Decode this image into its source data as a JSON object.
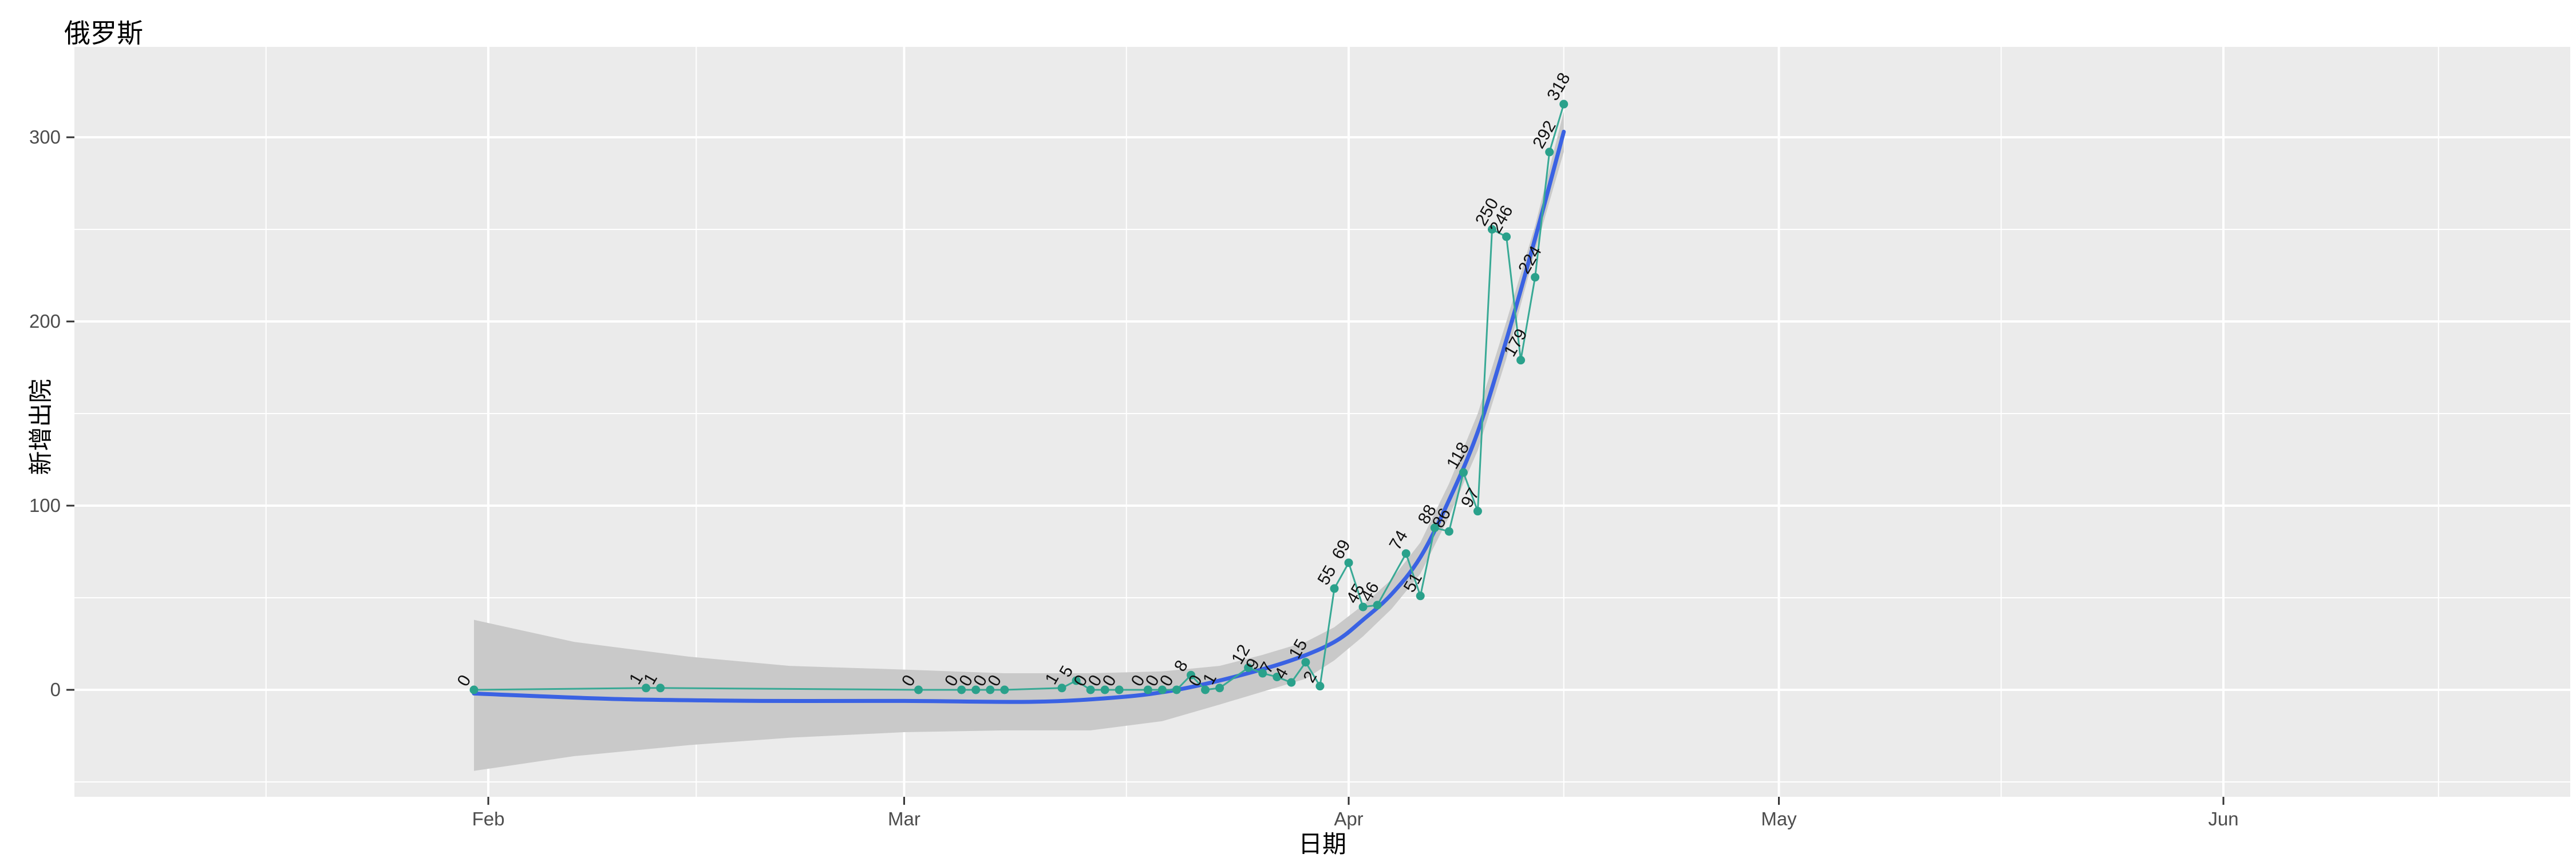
{
  "chart_data": {
    "type": "line",
    "title": "俄罗斯",
    "xlabel": "日期",
    "ylabel": "新增出院",
    "colors": {
      "panel_background": "#EBEBEB",
      "gridline": "#FFFFFF",
      "tick_mark": "#333333",
      "tick_label": "#4D4D4D",
      "smooth_line": "#3A62E3",
      "ribbon": "#C9C9C9",
      "data_line": "#38A995",
      "data_point": "#2AA18B",
      "data_label": "#111111"
    },
    "x_ticks": [
      {
        "label": "Feb",
        "date": "2020-02-01"
      },
      {
        "label": "Mar",
        "date": "2020-03-01"
      },
      {
        "label": "Apr",
        "date": "2020-04-01"
      },
      {
        "label": "May",
        "date": "2020-05-01"
      },
      {
        "label": "Jun",
        "date": "2020-06-01"
      }
    ],
    "y_ticks": [
      {
        "label": "0",
        "value": 0
      },
      {
        "label": "100",
        "value": 100
      },
      {
        "label": "200",
        "value": 200
      },
      {
        "label": "300",
        "value": 300
      }
    ],
    "y_minor_gridlines": [
      -50,
      50,
      150,
      250
    ],
    "x_month_boundaries": [
      "2020-01-01",
      "2020-02-01",
      "2020-03-01",
      "2020-04-01",
      "2020-05-01",
      "2020-06-01",
      "2020-07-01"
    ],
    "legend": "none",
    "grid": "on",
    "series": [
      {
        "name": "daily-new-discharged",
        "type": "scatter+line",
        "points": [
          {
            "date": "2020-01-31",
            "value": 0
          },
          {
            "date": "2020-02-12",
            "value": 1
          },
          {
            "date": "2020-02-13",
            "value": 1
          },
          {
            "date": "2020-03-02",
            "value": 0
          },
          {
            "date": "2020-03-05",
            "value": 0
          },
          {
            "date": "2020-03-06",
            "value": 0
          },
          {
            "date": "2020-03-07",
            "value": 0
          },
          {
            "date": "2020-03-08",
            "value": 0
          },
          {
            "date": "2020-03-12",
            "value": 1
          },
          {
            "date": "2020-03-13",
            "value": 5
          },
          {
            "date": "2020-03-14",
            "value": 0
          },
          {
            "date": "2020-03-15",
            "value": 0
          },
          {
            "date": "2020-03-16",
            "value": 0
          },
          {
            "date": "2020-03-18",
            "value": 0
          },
          {
            "date": "2020-03-19",
            "value": 0
          },
          {
            "date": "2020-03-20",
            "value": 0
          },
          {
            "date": "2020-03-21",
            "value": 8
          },
          {
            "date": "2020-03-22",
            "value": 0
          },
          {
            "date": "2020-03-23",
            "value": 1
          },
          {
            "date": "2020-03-25",
            "value": 12
          },
          {
            "date": "2020-03-26",
            "value": 9
          },
          {
            "date": "2020-03-27",
            "value": 7
          },
          {
            "date": "2020-03-28",
            "value": 4
          },
          {
            "date": "2020-03-29",
            "value": 15
          },
          {
            "date": "2020-03-30",
            "value": 2
          },
          {
            "date": "2020-03-31",
            "value": 55
          },
          {
            "date": "2020-04-01",
            "value": 69
          },
          {
            "date": "2020-04-02",
            "value": 45
          },
          {
            "date": "2020-04-03",
            "value": 46
          },
          {
            "date": "2020-04-05",
            "value": 74
          },
          {
            "date": "2020-04-06",
            "value": 51
          },
          {
            "date": "2020-04-07",
            "value": 88
          },
          {
            "date": "2020-04-08",
            "value": 86
          },
          {
            "date": "2020-04-09",
            "value": 118
          },
          {
            "date": "2020-04-10",
            "value": 97
          },
          {
            "date": "2020-04-11",
            "value": 250
          },
          {
            "date": "2020-04-12",
            "value": 246
          },
          {
            "date": "2020-04-13",
            "value": 179
          },
          {
            "date": "2020-04-14",
            "value": 224
          },
          {
            "date": "2020-04-15",
            "value": 292
          },
          {
            "date": "2020-04-16",
            "value": 318
          }
        ]
      },
      {
        "name": "loess-smooth",
        "type": "smooth-line",
        "anchors": [
          {
            "date": "2020-01-31",
            "value": -2
          },
          {
            "date": "2020-02-10",
            "value": -5
          },
          {
            "date": "2020-02-20",
            "value": -6
          },
          {
            "date": "2020-03-01",
            "value": -6
          },
          {
            "date": "2020-03-10",
            "value": -6.5
          },
          {
            "date": "2020-03-16",
            "value": -4
          },
          {
            "date": "2020-03-20",
            "value": 0
          },
          {
            "date": "2020-03-24",
            "value": 7
          },
          {
            "date": "2020-03-28",
            "value": 16
          },
          {
            "date": "2020-03-31",
            "value": 26
          },
          {
            "date": "2020-04-02",
            "value": 38
          },
          {
            "date": "2020-04-04",
            "value": 52
          },
          {
            "date": "2020-04-06",
            "value": 72
          },
          {
            "date": "2020-04-08",
            "value": 103
          },
          {
            "date": "2020-04-10",
            "value": 140
          },
          {
            "date": "2020-04-12",
            "value": 190
          },
          {
            "date": "2020-04-14",
            "value": 245
          },
          {
            "date": "2020-04-16",
            "value": 303
          }
        ]
      },
      {
        "name": "confidence-ribbon",
        "type": "ribbon",
        "upper": [
          {
            "date": "2020-01-31",
            "value": 38
          },
          {
            "date": "2020-02-07",
            "value": 26
          },
          {
            "date": "2020-02-15",
            "value": 18
          },
          {
            "date": "2020-02-22",
            "value": 13
          },
          {
            "date": "2020-03-01",
            "value": 11
          },
          {
            "date": "2020-03-08",
            "value": 9
          },
          {
            "date": "2020-03-14",
            "value": 9
          },
          {
            "date": "2020-03-19",
            "value": 10
          },
          {
            "date": "2020-03-23",
            "value": 13
          },
          {
            "date": "2020-03-26",
            "value": 19
          },
          {
            "date": "2020-03-29",
            "value": 26
          },
          {
            "date": "2020-03-31",
            "value": 34
          },
          {
            "date": "2020-04-02",
            "value": 46
          },
          {
            "date": "2020-04-04",
            "value": 60
          },
          {
            "date": "2020-04-06",
            "value": 80
          },
          {
            "date": "2020-04-08",
            "value": 112
          },
          {
            "date": "2020-04-10",
            "value": 150
          },
          {
            "date": "2020-04-12",
            "value": 200
          },
          {
            "date": "2020-04-14",
            "value": 252
          },
          {
            "date": "2020-04-15",
            "value": 283
          },
          {
            "date": "2020-04-16",
            "value": 314
          }
        ],
        "lower": [
          {
            "date": "2020-01-31",
            "value": -44
          },
          {
            "date": "2020-02-07",
            "value": -36
          },
          {
            "date": "2020-02-15",
            "value": -30
          },
          {
            "date": "2020-02-22",
            "value": -26
          },
          {
            "date": "2020-03-01",
            "value": -23
          },
          {
            "date": "2020-03-08",
            "value": -22
          },
          {
            "date": "2020-03-14",
            "value": -22
          },
          {
            "date": "2020-03-19",
            "value": -17
          },
          {
            "date": "2020-03-23",
            "value": -8
          },
          {
            "date": "2020-03-26",
            "value": -1
          },
          {
            "date": "2020-03-29",
            "value": 6
          },
          {
            "date": "2020-03-31",
            "value": 16
          },
          {
            "date": "2020-04-02",
            "value": 29
          },
          {
            "date": "2020-04-04",
            "value": 44
          },
          {
            "date": "2020-04-06",
            "value": 63
          },
          {
            "date": "2020-04-08",
            "value": 94
          },
          {
            "date": "2020-04-10",
            "value": 130
          },
          {
            "date": "2020-04-12",
            "value": 180
          },
          {
            "date": "2020-04-14",
            "value": 238
          },
          {
            "date": "2020-04-15",
            "value": 265
          },
          {
            "date": "2020-04-16",
            "value": 292
          }
        ]
      }
    ]
  }
}
